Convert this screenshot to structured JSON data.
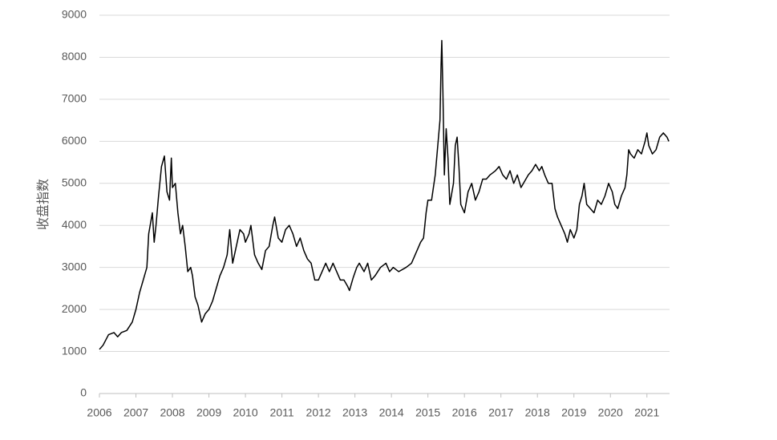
{
  "chart_data": {
    "type": "line",
    "y_label": "收盘指数",
    "x": [
      2006.0,
      2006.1,
      2006.25,
      2006.4,
      2006.5,
      2006.6,
      2006.75,
      2006.9,
      2007.0,
      2007.1,
      2007.2,
      2007.3,
      2007.35,
      2007.45,
      2007.5,
      2007.55,
      2007.62,
      2007.7,
      2007.78,
      2007.85,
      2007.92,
      2007.97,
      2008.0,
      2008.08,
      2008.15,
      2008.22,
      2008.28,
      2008.35,
      2008.42,
      2008.5,
      2008.55,
      2008.62,
      2008.7,
      2008.8,
      2008.9,
      2009.0,
      2009.1,
      2009.2,
      2009.3,
      2009.4,
      2009.5,
      2009.57,
      2009.65,
      2009.75,
      2009.85,
      2009.95,
      2010.0,
      2010.1,
      2010.15,
      2010.25,
      2010.35,
      2010.45,
      2010.55,
      2010.65,
      2010.75,
      2010.8,
      2010.9,
      2011.0,
      2011.1,
      2011.2,
      2011.3,
      2011.4,
      2011.5,
      2011.6,
      2011.7,
      2011.8,
      2011.9,
      2012.0,
      2012.1,
      2012.2,
      2012.3,
      2012.4,
      2012.5,
      2012.6,
      2012.7,
      2012.8,
      2012.85,
      2012.95,
      2013.05,
      2013.12,
      2013.25,
      2013.35,
      2013.45,
      2013.55,
      2013.7,
      2013.85,
      2013.95,
      2014.05,
      2014.2,
      2014.4,
      2014.55,
      2014.65,
      2014.8,
      2014.88,
      2014.95,
      2015.0,
      2015.1,
      2015.2,
      2015.28,
      2015.33,
      2015.36,
      2015.38,
      2015.41,
      2015.45,
      2015.5,
      2015.55,
      2015.6,
      2015.7,
      2015.75,
      2015.8,
      2015.85,
      2015.9,
      2016.0,
      2016.1,
      2016.2,
      2016.3,
      2016.4,
      2016.5,
      2016.6,
      2016.7,
      2016.85,
      2016.95,
      2017.05,
      2017.15,
      2017.25,
      2017.35,
      2017.45,
      2017.55,
      2017.65,
      2017.75,
      2017.85,
      2017.95,
      2018.05,
      2018.12,
      2018.2,
      2018.3,
      2018.4,
      2018.48,
      2018.55,
      2018.65,
      2018.75,
      2018.82,
      2018.9,
      2019.0,
      2019.08,
      2019.15,
      2019.22,
      2019.28,
      2019.35,
      2019.45,
      2019.55,
      2019.65,
      2019.75,
      2019.85,
      2019.95,
      2020.05,
      2020.12,
      2020.2,
      2020.3,
      2020.4,
      2020.45,
      2020.5,
      2020.55,
      2020.65,
      2020.75,
      2020.85,
      2020.95,
      2021.0,
      2021.05,
      2021.15,
      2021.25,
      2021.35,
      2021.45,
      2021.55,
      2021.6
    ],
    "values": [
      1050,
      1150,
      1400,
      1450,
      1350,
      1450,
      1500,
      1700,
      2000,
      2400,
      2700,
      3000,
      3800,
      4300,
      3600,
      4000,
      4700,
      5400,
      5650,
      4800,
      4600,
      5600,
      4900,
      5000,
      4300,
      3800,
      4000,
      3500,
      2900,
      3000,
      2800,
      2300,
      2100,
      1700,
      1900,
      2000,
      2200,
      2500,
      2800,
      3000,
      3300,
      3900,
      3100,
      3500,
      3900,
      3800,
      3600,
      3800,
      4000,
      3300,
      3100,
      2950,
      3400,
      3500,
      4000,
      4200,
      3700,
      3600,
      3900,
      4000,
      3800,
      3500,
      3700,
      3400,
      3200,
      3100,
      2700,
      2700,
      2900,
      3100,
      2900,
      3100,
      2900,
      2700,
      2700,
      2550,
      2450,
      2750,
      3000,
      3100,
      2900,
      3100,
      2700,
      2800,
      3000,
      3100,
      2900,
      3000,
      2900,
      3000,
      3100,
      3300,
      3600,
      3700,
      4300,
      4600,
      4600,
      5200,
      6000,
      6500,
      7800,
      8400,
      7200,
      5200,
      6300,
      5600,
      4500,
      5000,
      5900,
      6100,
      5400,
      4500,
      4300,
      4800,
      5000,
      4600,
      4800,
      5100,
      5100,
      5200,
      5300,
      5400,
      5200,
      5100,
      5300,
      5000,
      5200,
      4900,
      5050,
      5200,
      5300,
      5450,
      5300,
      5400,
      5200,
      5000,
      5000,
      4400,
      4200,
      4000,
      3800,
      3600,
      3900,
      3700,
      3900,
      4500,
      4700,
      5000,
      4500,
      4400,
      4300,
      4600,
      4500,
      4700,
      5000,
      4800,
      4500,
      4400,
      4700,
      4900,
      5200,
      5800,
      5700,
      5600,
      5800,
      5700,
      6000,
      6200,
      5900,
      5700,
      5800,
      6100,
      6200,
      6100,
      6000
    ],
    "color": "#000000",
    "xlim": [
      2006,
      2021.62
    ],
    "xticks": [
      2006,
      2007,
      2008,
      2009,
      2010,
      2011,
      2012,
      2013,
      2014,
      2015,
      2016,
      2017,
      2018,
      2019,
      2020,
      2021
    ],
    "ylim": [
      0,
      9000
    ],
    "yticks": [
      0,
      1000,
      2000,
      3000,
      4000,
      5000,
      6000,
      7000,
      8000,
      9000
    ],
    "grid": true
  }
}
